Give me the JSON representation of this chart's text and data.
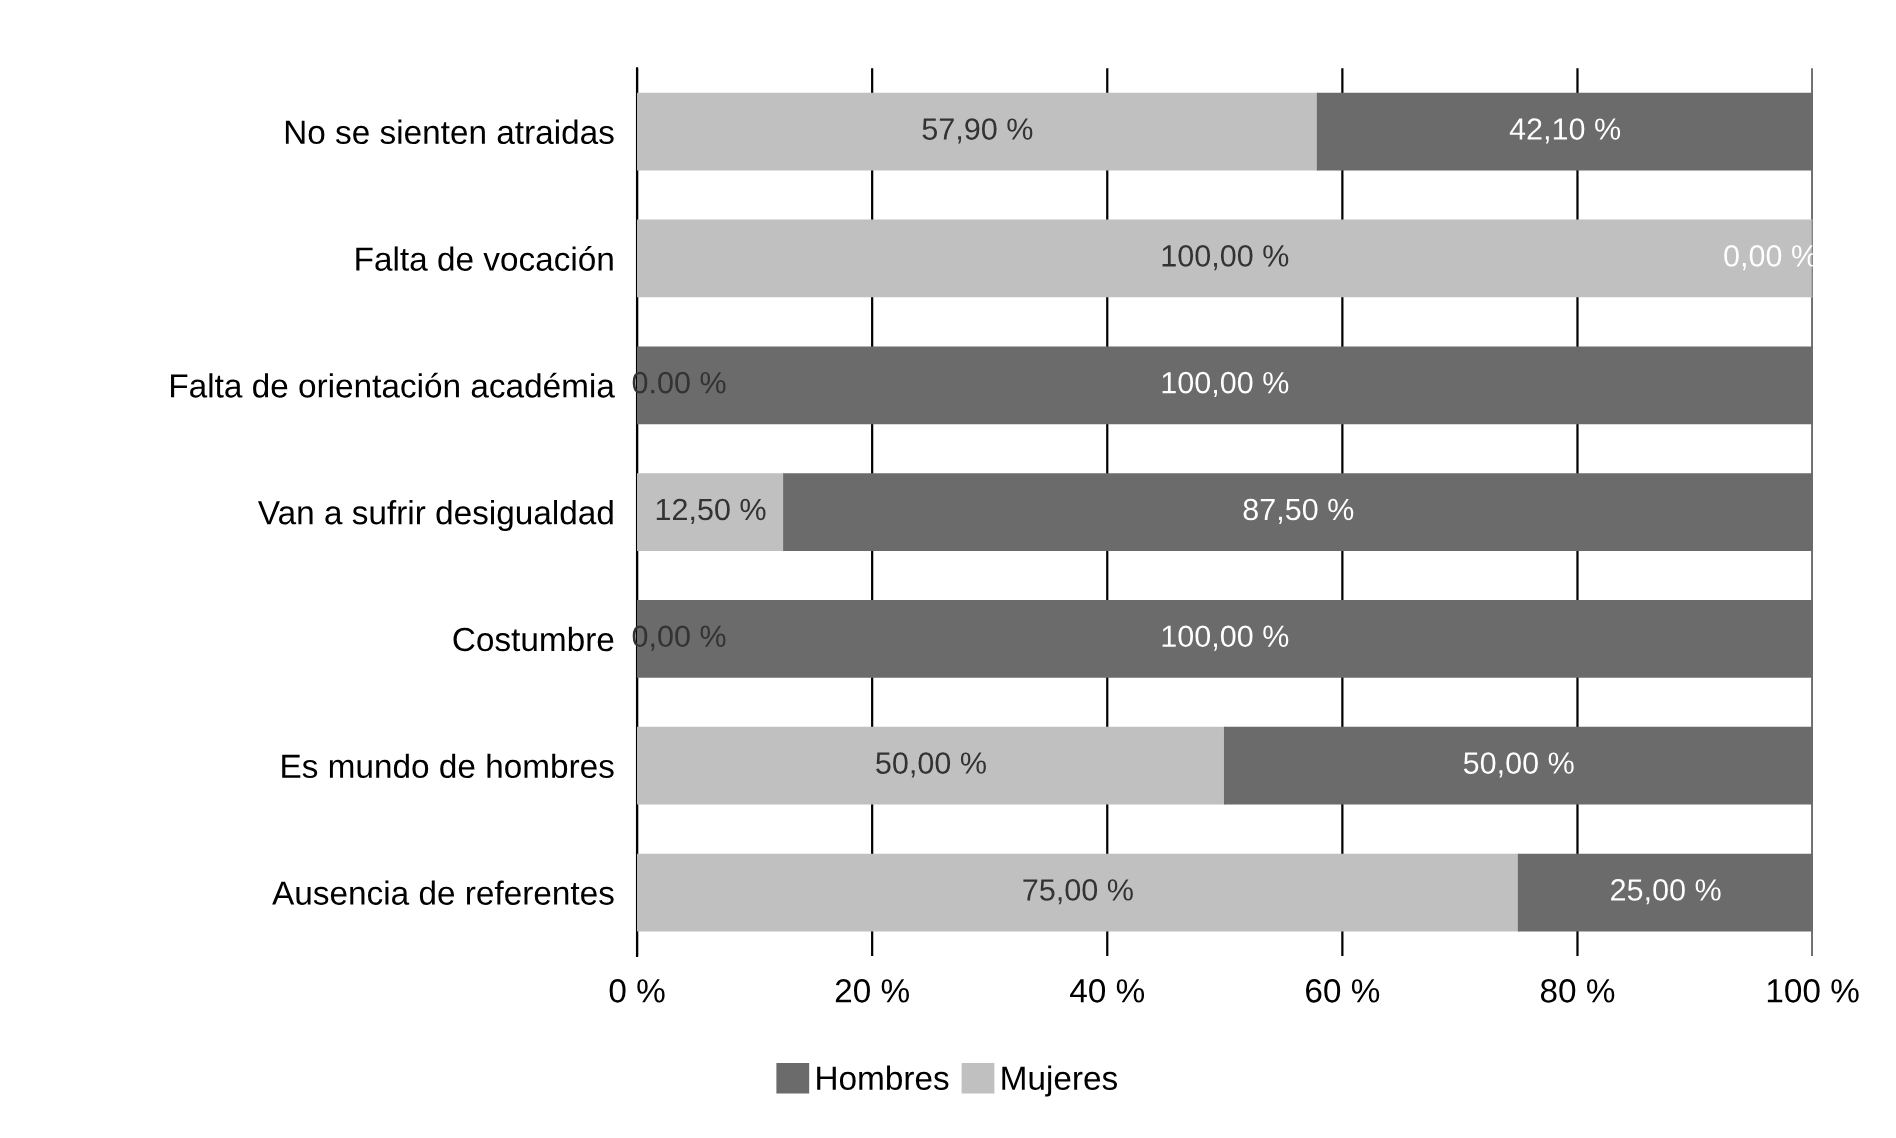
{
  "chart_data": {
    "type": "bar",
    "orientation": "horizontal",
    "stacked": true,
    "categories": [
      "No se sienten atraidas",
      "Falta de vocación",
      "Falta de orientación académia",
      "Van a sufrir desigualdad",
      "Costumbre",
      "Es mundo de hombres",
      "Ausencia de referentes"
    ],
    "series": [
      {
        "name": "Mujeres",
        "color": "#c0c0c0",
        "values": [
          57.9,
          100,
          0,
          12.5,
          0,
          50,
          75
        ],
        "value_labels": [
          "57,90 %",
          "100,00 %",
          "0.00 %",
          "12,50 %",
          "0,00 %",
          "50,00 %",
          "75,00 %"
        ]
      },
      {
        "name": "Hombres",
        "color": "#6b6b6b",
        "values": [
          42.1,
          0,
          100,
          87.5,
          100,
          50,
          25
        ],
        "value_labels": [
          "42,10 %",
          "0,00 %",
          "100,00 %",
          "87,50 %",
          "100,00 %",
          "50,00 %",
          "25,00 %"
        ]
      }
    ],
    "xlim": [
      0,
      100
    ],
    "xticks": [
      {
        "value": 0,
        "label": "0 %"
      },
      {
        "value": 20,
        "label": "20 %"
      },
      {
        "value": 40,
        "label": "40 %"
      },
      {
        "value": 60,
        "label": "60 %"
      },
      {
        "value": 80,
        "label": "80 %"
      },
      {
        "value": 100,
        "label": "100 %"
      }
    ],
    "grid": "x",
    "legend": "bottom"
  }
}
